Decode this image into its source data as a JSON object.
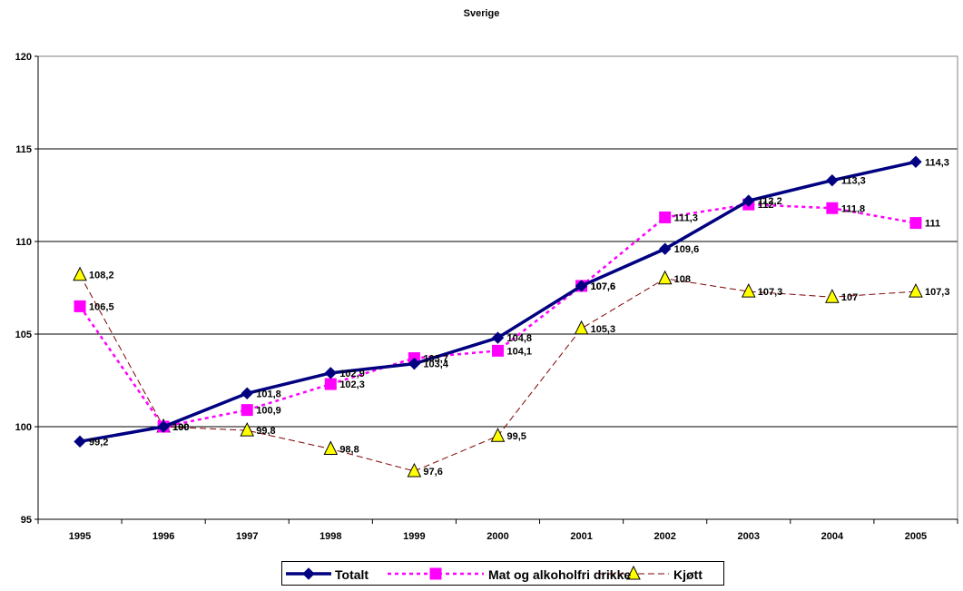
{
  "chart_data": {
    "type": "line",
    "title": "Sverige",
    "xlabel": "",
    "ylabel": "",
    "x": [
      "1995",
      "1996",
      "1997",
      "1998",
      "1999",
      "2000",
      "2001",
      "2002",
      "2003",
      "2004",
      "2005"
    ],
    "ylim": [
      95,
      120
    ],
    "yticks": [
      "95",
      "100",
      "105",
      "110",
      "115",
      "120"
    ],
    "grid": true,
    "legend_position": "bottom",
    "series": [
      {
        "name": "Totalt",
        "values": [
          99.2,
          100,
          101.8,
          102.9,
          103.4,
          104.8,
          107.6,
          109.6,
          112.2,
          113.3,
          114.3
        ],
        "labels": [
          "99,2",
          "100",
          "101,8",
          "102,9",
          "103,4",
          "104,8",
          "107,6",
          "109,6",
          "112,2",
          "113,3",
          "114,3"
        ],
        "color": "#000080",
        "marker": "diamond",
        "line_style": "solid"
      },
      {
        "name": "Mat og alkoholfri drikke",
        "values": [
          106.5,
          100,
          100.9,
          102.3,
          103.7,
          104.1,
          107.6,
          111.3,
          112,
          111.8,
          111
        ],
        "labels": [
          "106,5",
          "100",
          "100,9",
          "102,3",
          "103,7",
          "104,1",
          "107,6",
          "111,3",
          "112",
          "111,8",
          "111"
        ],
        "color": "#FF00FF",
        "marker": "square",
        "line_style": "dotted"
      },
      {
        "name": "Kjøtt",
        "values": [
          108.2,
          100,
          99.8,
          98.8,
          97.6,
          99.5,
          105.3,
          108,
          107.3,
          107,
          107.3
        ],
        "labels": [
          "108,2",
          "100",
          "99,8",
          "98,8",
          "97,6",
          "99,5",
          "105,3",
          "108",
          "107,3",
          "107",
          "107,3"
        ],
        "color": "#800000",
        "marker": "triangle",
        "marker_fill": "#FFFF00",
        "line_style": "dashed"
      }
    ]
  }
}
